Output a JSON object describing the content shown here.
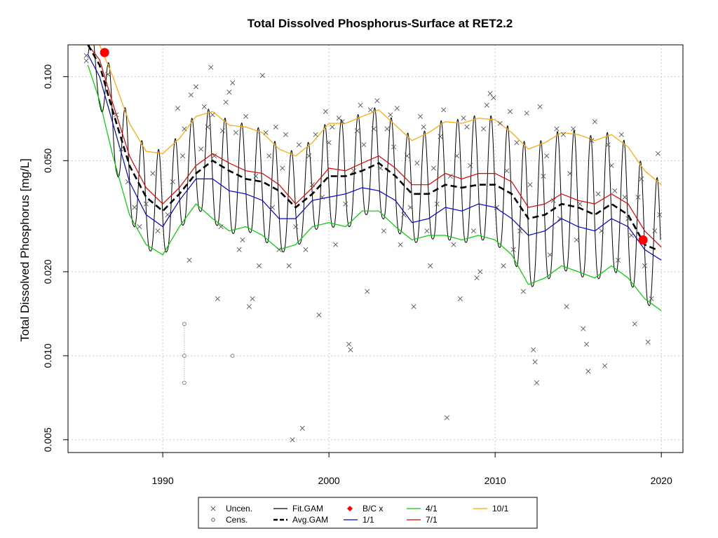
{
  "chart_data": {
    "type": "line",
    "title": "Total Dissolved Phosphorus-Surface at RET2.2",
    "xlabel": "",
    "ylabel": "Total Dissolved Phosphorus [mg/L]",
    "log_y": true,
    "xlim": [
      1984.3,
      2021.3
    ],
    "ylim": [
      0.0045,
      0.13
    ],
    "x_ticks": [
      {
        "v": 1990,
        "label": "1990"
      },
      {
        "v": 2000,
        "label": "2000"
      },
      {
        "v": 2010,
        "label": "2010"
      },
      {
        "v": 2020,
        "label": "2020"
      }
    ],
    "y_ticks": [
      {
        "v": 0.005,
        "label": "0.005"
      },
      {
        "v": 0.01,
        "label": "0.010"
      },
      {
        "v": 0.02,
        "label": "0.020"
      },
      {
        "v": 0.05,
        "label": "0.050"
      },
      {
        "v": 0.1,
        "label": "0.100"
      }
    ],
    "grid": true,
    "legend_position": "bottom",
    "colors": {
      "fit": "#000000",
      "avg": "#000000",
      "q1": "#0000CC",
      "q4": "#00CC00",
      "q7": "#DD0000",
      "q10": "#FFA500",
      "bc": "#FF0000",
      "points": "#555555"
    },
    "legend": [
      {
        "key": "uncen",
        "label": "Uncen.",
        "symbol": "cross"
      },
      {
        "key": "cens",
        "label": "Cens.",
        "symbol": "circle"
      },
      {
        "key": "fit",
        "label": "Fit.GAM",
        "symbol": "line"
      },
      {
        "key": "avg",
        "label": "Avg.GAM",
        "symbol": "dashed"
      },
      {
        "key": "bc",
        "label": "B/C x",
        "symbol": "diamond"
      },
      {
        "key": "q1",
        "label": "1/1",
        "symbol": "line"
      },
      {
        "key": "q4",
        "label": "4/1",
        "symbol": "line"
      },
      {
        "key": "q7",
        "label": "7/1",
        "symbol": "line"
      },
      {
        "key": "q10",
        "label": "10/1",
        "symbol": "line"
      }
    ],
    "series": [
      {
        "name": "Avg.GAM",
        "x": [
          1985.5,
          1986.2,
          1987.0,
          1988.0,
          1989.0,
          1990.0,
          1991.0,
          1992.0,
          1993.0,
          1994.0,
          1995.0,
          1996.0,
          1997.0,
          1998.0,
          1999.0,
          2000.0,
          2001.0,
          2002.0,
          2003.0,
          2004.0,
          2005.0,
          2006.0,
          2007.0,
          2008.0,
          2009.0,
          2010.0,
          2011.0,
          2012.0,
          2013.0,
          2014.0,
          2015.0,
          2016.0,
          2017.0,
          2018.0,
          2019.0,
          2019.7
        ],
        "y": [
          0.13,
          0.11,
          0.075,
          0.048,
          0.037,
          0.033,
          0.038,
          0.045,
          0.05,
          0.046,
          0.043,
          0.042,
          0.039,
          0.034,
          0.038,
          0.044,
          0.044,
          0.046,
          0.049,
          0.044,
          0.038,
          0.038,
          0.041,
          0.04,
          0.041,
          0.041,
          0.038,
          0.031,
          0.032,
          0.035,
          0.034,
          0.032,
          0.035,
          0.032,
          0.025,
          0.024
        ]
      },
      {
        "name": "1/1",
        "x": [
          1985.5,
          1986.2,
          1987.0,
          1988.0,
          1989.0,
          1990.0,
          1991.0,
          1992.0,
          1993.0,
          1994.0,
          1995.0,
          1996.0,
          1997.0,
          1998.0,
          1999.0,
          2000.0,
          2001.0,
          2002.0,
          2003.0,
          2004.0,
          2005.0,
          2006.0,
          2007.0,
          2008.0,
          2009.0,
          2010.0,
          2011.0,
          2012.0,
          2013.0,
          2014.0,
          2015.0,
          2016.0,
          2017.0,
          2018.0,
          2019.0,
          2020.0
        ],
        "y": [
          0.12,
          0.1,
          0.068,
          0.042,
          0.032,
          0.029,
          0.036,
          0.043,
          0.043,
          0.039,
          0.038,
          0.036,
          0.031,
          0.031,
          0.036,
          0.037,
          0.038,
          0.04,
          0.039,
          0.036,
          0.03,
          0.031,
          0.034,
          0.033,
          0.035,
          0.034,
          0.031,
          0.027,
          0.028,
          0.031,
          0.029,
          0.028,
          0.031,
          0.029,
          0.024,
          0.022
        ]
      },
      {
        "name": "4/1",
        "x": [
          1985.5,
          1986.2,
          1987.0,
          1988.0,
          1989.0,
          1990.0,
          1991.0,
          1992.0,
          1993.0,
          1994.0,
          1995.0,
          1996.0,
          1997.0,
          1998.0,
          1999.0,
          2000.0,
          2001.0,
          2002.0,
          2003.0,
          2004.0,
          2005.0,
          2006.0,
          2007.0,
          2008.0,
          2009.0,
          2010.0,
          2011.0,
          2012.0,
          2013.0,
          2014.0,
          2015.0,
          2016.0,
          2017.0,
          2018.0,
          2019.0,
          2020.0
        ],
        "y": [
          0.11,
          0.082,
          0.052,
          0.032,
          0.025,
          0.023,
          0.029,
          0.035,
          0.031,
          0.028,
          0.029,
          0.027,
          0.024,
          0.025,
          0.029,
          0.03,
          0.029,
          0.033,
          0.033,
          0.029,
          0.026,
          0.027,
          0.027,
          0.026,
          0.027,
          0.026,
          0.023,
          0.018,
          0.019,
          0.021,
          0.02,
          0.019,
          0.021,
          0.019,
          0.016,
          0.0145
        ]
      },
      {
        "name": "7/1",
        "x": [
          1985.5,
          1986.2,
          1987.0,
          1988.0,
          1989.0,
          1990.0,
          1991.0,
          1992.0,
          1993.0,
          1994.0,
          1995.0,
          1996.0,
          1997.0,
          1998.0,
          1999.0,
          2000.0,
          2001.0,
          2002.0,
          2003.0,
          2004.0,
          2005.0,
          2006.0,
          2007.0,
          2008.0,
          2009.0,
          2010.0,
          2011.0,
          2012.0,
          2013.0,
          2014.0,
          2015.0,
          2016.0,
          2017.0,
          2018.0,
          2019.0,
          2020.0
        ],
        "y": [
          0.13,
          0.115,
          0.08,
          0.052,
          0.04,
          0.035,
          0.04,
          0.048,
          0.053,
          0.049,
          0.046,
          0.045,
          0.041,
          0.035,
          0.04,
          0.047,
          0.046,
          0.049,
          0.052,
          0.047,
          0.041,
          0.041,
          0.045,
          0.043,
          0.045,
          0.045,
          0.042,
          0.034,
          0.035,
          0.038,
          0.036,
          0.035,
          0.038,
          0.035,
          0.028,
          0.0245
        ]
      },
      {
        "name": "10/1",
        "x": [
          1985.5,
          1986.2,
          1987.0,
          1988.0,
          1989.0,
          1990.0,
          1991.0,
          1992.0,
          1993.0,
          1994.0,
          1995.0,
          1996.0,
          1997.0,
          1998.0,
          1999.0,
          2000.0,
          2001.0,
          2002.0,
          2003.0,
          2004.0,
          2005.0,
          2006.0,
          2007.0,
          2008.0,
          2009.0,
          2010.0,
          2011.0,
          2012.0,
          2013.0,
          2014.0,
          2015.0,
          2016.0,
          2017.0,
          2018.0,
          2019.0,
          2020.0
        ],
        "y": [
          0.14,
          0.13,
          0.1,
          0.068,
          0.054,
          0.053,
          0.06,
          0.072,
          0.075,
          0.067,
          0.066,
          0.063,
          0.055,
          0.052,
          0.058,
          0.068,
          0.068,
          0.072,
          0.076,
          0.067,
          0.059,
          0.063,
          0.069,
          0.068,
          0.071,
          0.07,
          0.063,
          0.055,
          0.058,
          0.063,
          0.062,
          0.059,
          0.062,
          0.056,
          0.046,
          0.041
        ]
      }
    ],
    "bc_points": [
      {
        "x": 1986.5,
        "y": 0.122
      },
      {
        "x": 2018.9,
        "y": 0.026
      }
    ],
    "censored": [
      {
        "x": 1991.3,
        "y": 0.013
      },
      {
        "x": 1991.3,
        "y": 0.01
      },
      {
        "x": 1991.3,
        "y": 0.008
      },
      {
        "x": 1994.2,
        "y": 0.01
      }
    ],
    "uncensored": [
      {
        "x": 1985.4,
        "y": 0.114
      },
      {
        "x": 1985.4,
        "y": 0.119
      },
      {
        "x": 1986.7,
        "y": 0.102
      },
      {
        "x": 1987.2,
        "y": 0.073
      },
      {
        "x": 1987.5,
        "y": 0.055
      },
      {
        "x": 1987.9,
        "y": 0.042
      },
      {
        "x": 1988.3,
        "y": 0.034
      },
      {
        "x": 1988.6,
        "y": 0.029
      },
      {
        "x": 1989.0,
        "y": 0.035
      },
      {
        "x": 1989.4,
        "y": 0.045
      },
      {
        "x": 1989.7,
        "y": 0.028
      },
      {
        "x": 1990.3,
        "y": 0.032
      },
      {
        "x": 1990.6,
        "y": 0.042
      },
      {
        "x": 1990.9,
        "y": 0.077
      },
      {
        "x": 1991.2,
        "y": 0.052
      },
      {
        "x": 1991.3,
        "y": 0.065
      },
      {
        "x": 1991.6,
        "y": 0.022
      },
      {
        "x": 1991.7,
        "y": 0.086
      },
      {
        "x": 1992.0,
        "y": 0.092
      },
      {
        "x": 1992.3,
        "y": 0.055
      },
      {
        "x": 1992.5,
        "y": 0.078
      },
      {
        "x": 1992.7,
        "y": 0.066
      },
      {
        "x": 1992.9,
        "y": 0.108
      },
      {
        "x": 1993.0,
        "y": 0.073
      },
      {
        "x": 1993.1,
        "y": 0.052
      },
      {
        "x": 1993.3,
        "y": 0.016
      },
      {
        "x": 1993.5,
        "y": 0.029
      },
      {
        "x": 1993.6,
        "y": 0.064
      },
      {
        "x": 1993.8,
        "y": 0.081
      },
      {
        "x": 1994.0,
        "y": 0.088
      },
      {
        "x": 1994.2,
        "y": 0.095
      },
      {
        "x": 1994.4,
        "y": 0.063
      },
      {
        "x": 1994.6,
        "y": 0.024
      },
      {
        "x": 1994.8,
        "y": 0.026
      },
      {
        "x": 1995.0,
        "y": 0.072
      },
      {
        "x": 1995.2,
        "y": 0.015
      },
      {
        "x": 1995.4,
        "y": 0.016
      },
      {
        "x": 1995.6,
        "y": 0.044
      },
      {
        "x": 1995.8,
        "y": 0.021
      },
      {
        "x": 1996.0,
        "y": 0.101
      },
      {
        "x": 1996.2,
        "y": 0.063
      },
      {
        "x": 1996.4,
        "y": 0.052
      },
      {
        "x": 1996.6,
        "y": 0.034
      },
      {
        "x": 1996.8,
        "y": 0.066
      },
      {
        "x": 1997.0,
        "y": 0.024
      },
      {
        "x": 1997.2,
        "y": 0.047
      },
      {
        "x": 1997.4,
        "y": 0.062
      },
      {
        "x": 1997.6,
        "y": 0.021
      },
      {
        "x": 1997.8,
        "y": 0.005
      },
      {
        "x": 1998.0,
        "y": 0.029
      },
      {
        "x": 1998.2,
        "y": 0.057
      },
      {
        "x": 1998.4,
        "y": 0.0055
      },
      {
        "x": 1998.6,
        "y": 0.024
      },
      {
        "x": 1998.8,
        "y": 0.052
      },
      {
        "x": 1999.0,
        "y": 0.041
      },
      {
        "x": 1999.2,
        "y": 0.062
      },
      {
        "x": 1999.4,
        "y": 0.014
      },
      {
        "x": 1999.6,
        "y": 0.037
      },
      {
        "x": 1999.8,
        "y": 0.075
      },
      {
        "x": 2000.0,
        "y": 0.058
      },
      {
        "x": 2000.2,
        "y": 0.066
      },
      {
        "x": 2000.4,
        "y": 0.025
      },
      {
        "x": 2000.6,
        "y": 0.071
      },
      {
        "x": 2000.8,
        "y": 0.069
      },
      {
        "x": 2001.0,
        "y": 0.035
      },
      {
        "x": 2001.2,
        "y": 0.011
      },
      {
        "x": 2001.3,
        "y": 0.0105
      },
      {
        "x": 2001.5,
        "y": 0.046
      },
      {
        "x": 2001.7,
        "y": 0.064
      },
      {
        "x": 2001.9,
        "y": 0.079
      },
      {
        "x": 2002.1,
        "y": 0.057
      },
      {
        "x": 2002.3,
        "y": 0.017
      },
      {
        "x": 2002.5,
        "y": 0.076
      },
      {
        "x": 2002.7,
        "y": 0.065
      },
      {
        "x": 2002.9,
        "y": 0.082
      },
      {
        "x": 2003.1,
        "y": 0.047
      },
      {
        "x": 2003.3,
        "y": 0.028
      },
      {
        "x": 2003.5,
        "y": 0.065
      },
      {
        "x": 2003.7,
        "y": 0.073
      },
      {
        "x": 2003.9,
        "y": 0.056
      },
      {
        "x": 2004.1,
        "y": 0.077
      },
      {
        "x": 2004.3,
        "y": 0.025
      },
      {
        "x": 2004.5,
        "y": 0.032
      },
      {
        "x": 2004.7,
        "y": 0.052
      },
      {
        "x": 2004.9,
        "y": 0.034
      },
      {
        "x": 2005.1,
        "y": 0.015
      },
      {
        "x": 2005.3,
        "y": 0.049
      },
      {
        "x": 2005.5,
        "y": 0.072
      },
      {
        "x": 2005.7,
        "y": 0.066
      },
      {
        "x": 2005.9,
        "y": 0.028
      },
      {
        "x": 2006.1,
        "y": 0.021
      },
      {
        "x": 2006.3,
        "y": 0.047
      },
      {
        "x": 2006.5,
        "y": 0.035
      },
      {
        "x": 2006.7,
        "y": 0.061
      },
      {
        "x": 2006.9,
        "y": 0.076
      },
      {
        "x": 2007.1,
        "y": 0.006
      },
      {
        "x": 2007.3,
        "y": 0.044
      },
      {
        "x": 2007.5,
        "y": 0.025
      },
      {
        "x": 2007.7,
        "y": 0.052
      },
      {
        "x": 2007.9,
        "y": 0.016
      },
      {
        "x": 2008.1,
        "y": 0.071
      },
      {
        "x": 2008.3,
        "y": 0.066
      },
      {
        "x": 2008.5,
        "y": 0.048
      },
      {
        "x": 2008.7,
        "y": 0.028
      },
      {
        "x": 2008.9,
        "y": 0.019
      },
      {
        "x": 2009.1,
        "y": 0.02
      },
      {
        "x": 2009.3,
        "y": 0.065
      },
      {
        "x": 2009.5,
        "y": 0.079
      },
      {
        "x": 2009.7,
        "y": 0.087
      },
      {
        "x": 2009.9,
        "y": 0.084
      },
      {
        "x": 2010.1,
        "y": 0.034
      },
      {
        "x": 2010.3,
        "y": 0.068
      },
      {
        "x": 2010.5,
        "y": 0.021
      },
      {
        "x": 2010.7,
        "y": 0.046
      },
      {
        "x": 2010.9,
        "y": 0.075
      },
      {
        "x": 2011.1,
        "y": 0.024
      },
      {
        "x": 2011.3,
        "y": 0.058
      },
      {
        "x": 2011.5,
        "y": 0.028
      },
      {
        "x": 2011.7,
        "y": 0.017
      },
      {
        "x": 2011.9,
        "y": 0.074
      },
      {
        "x": 2012.1,
        "y": 0.041
      },
      {
        "x": 2012.3,
        "y": 0.0105
      },
      {
        "x": 2012.4,
        "y": 0.0095
      },
      {
        "x": 2012.5,
        "y": 0.008
      },
      {
        "x": 2012.7,
        "y": 0.078
      },
      {
        "x": 2012.9,
        "y": 0.044
      },
      {
        "x": 2013.1,
        "y": 0.052
      },
      {
        "x": 2013.3,
        "y": 0.023
      },
      {
        "x": 2013.5,
        "y": 0.036
      },
      {
        "x": 2013.7,
        "y": 0.065
      },
      {
        "x": 2013.9,
        "y": 0.031
      },
      {
        "x": 2014.1,
        "y": 0.062
      },
      {
        "x": 2014.3,
        "y": 0.015
      },
      {
        "x": 2014.5,
        "y": 0.045
      },
      {
        "x": 2014.7,
        "y": 0.065
      },
      {
        "x": 2014.9,
        "y": 0.026
      },
      {
        "x": 2015.1,
        "y": 0.035
      },
      {
        "x": 2015.3,
        "y": 0.0125
      },
      {
        "x": 2015.5,
        "y": 0.011
      },
      {
        "x": 2015.6,
        "y": 0.0088
      },
      {
        "x": 2015.8,
        "y": 0.059
      },
      {
        "x": 2016.0,
        "y": 0.069
      },
      {
        "x": 2016.2,
        "y": 0.038
      },
      {
        "x": 2016.4,
        "y": 0.028
      },
      {
        "x": 2016.6,
        "y": 0.0092
      },
      {
        "x": 2016.8,
        "y": 0.057
      },
      {
        "x": 2017.0,
        "y": 0.048
      },
      {
        "x": 2017.2,
        "y": 0.039
      },
      {
        "x": 2017.4,
        "y": 0.022
      },
      {
        "x": 2017.6,
        "y": 0.062
      },
      {
        "x": 2017.8,
        "y": 0.037
      },
      {
        "x": 2018.0,
        "y": 0.031
      },
      {
        "x": 2018.2,
        "y": 0.027
      },
      {
        "x": 2018.4,
        "y": 0.013
      },
      {
        "x": 2018.6,
        "y": 0.037
      },
      {
        "x": 2018.8,
        "y": 0.043
      },
      {
        "x": 2019.0,
        "y": 0.021
      },
      {
        "x": 2019.2,
        "y": 0.0112
      },
      {
        "x": 2019.4,
        "y": 0.016
      },
      {
        "x": 2019.6,
        "y": 0.028
      },
      {
        "x": 2019.8,
        "y": 0.053
      },
      {
        "x": 2019.9,
        "y": 0.032
      }
    ]
  }
}
